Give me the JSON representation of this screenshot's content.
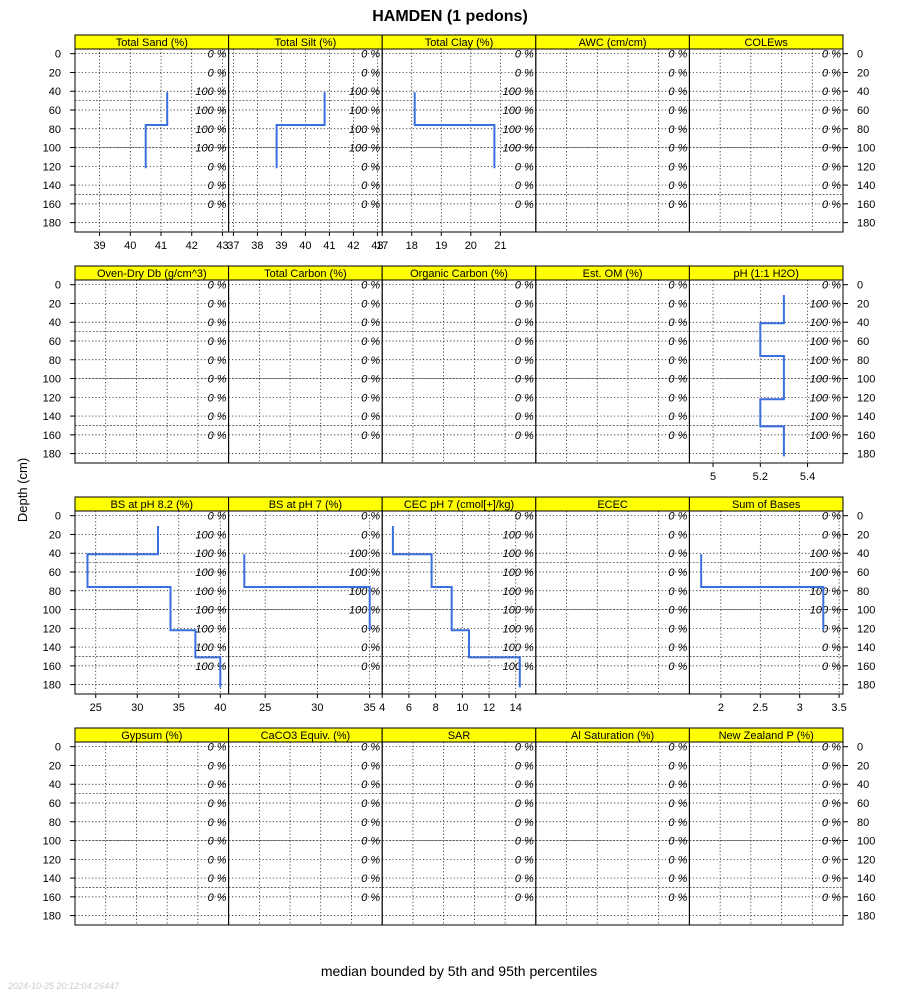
{
  "chart_data": {
    "type": "line",
    "title": "HAMDEN (1 pedons)",
    "ylabel": "Depth (cm)",
    "xlabel": "median bounded by 5th and 95th percentiles",
    "timestamp": "2024-10-25 20:12:04.26447",
    "depth_ticks": [
      0,
      20,
      40,
      60,
      80,
      100,
      120,
      140,
      160,
      180
    ],
    "ylim": [
      190,
      -5
    ],
    "grid": true,
    "line_color": "#3a6fe0",
    "strip_color": "#ffff00",
    "contributing_fraction_depths": [
      0,
      20,
      40,
      60,
      80,
      100,
      120,
      140,
      160
    ],
    "panels": [
      [
        {
          "title": "Total Sand (%)",
          "xlim": [
            38.2,
            43.2
          ],
          "ticks": [
            39,
            40,
            41,
            42,
            43
          ],
          "pct": [
            "0 %",
            "0 %",
            "100 %",
            "100 %",
            "100 %",
            "100 %",
            "0 %",
            "0 %",
            "0 %"
          ],
          "series": [
            {
              "top": 41,
              "bottom": 76,
              "value": 41.2
            },
            {
              "top": 76,
              "bottom": 122,
              "value": 40.5
            }
          ]
        },
        {
          "title": "Total Silt (%)",
          "xlim": [
            36.8,
            43.2
          ],
          "ticks": [
            37,
            38,
            39,
            40,
            41,
            42,
            43
          ],
          "pct": [
            "0 %",
            "0 %",
            "100 %",
            "100 %",
            "100 %",
            "100 %",
            "0 %",
            "0 %",
            "0 %"
          ],
          "series": [
            {
              "top": 41,
              "bottom": 76,
              "value": 40.8
            },
            {
              "top": 76,
              "bottom": 122,
              "value": 38.8
            }
          ]
        },
        {
          "title": "Total Clay (%)",
          "xlim": [
            17,
            22.2
          ],
          "ticks": [
            17,
            18,
            19,
            20,
            21
          ],
          "pct": [
            "0 %",
            "0 %",
            "100 %",
            "100 %",
            "100 %",
            "100 %",
            "0 %",
            "0 %",
            "0 %"
          ],
          "series": [
            {
              "top": 41,
              "bottom": 76,
              "value": 18.1
            },
            {
              "top": 76,
              "bottom": 122,
              "value": 20.8
            }
          ]
        },
        {
          "title": "AWC (cm/cm)",
          "xlim": [
            0,
            1
          ],
          "ticks": [],
          "pct": [
            "0 %",
            "0 %",
            "0 %",
            "0 %",
            "0 %",
            "0 %",
            "0 %",
            "0 %",
            "0 %"
          ],
          "series": []
        },
        {
          "title": "COLEws",
          "xlim": [
            0,
            1
          ],
          "ticks": [],
          "pct": [
            "0 %",
            "0 %",
            "0 %",
            "0 %",
            "0 %",
            "0 %",
            "0 %",
            "0 %",
            "0 %"
          ],
          "series": []
        }
      ],
      [
        {
          "title": "Oven-Dry Db (g/cm^3)",
          "xlim": [
            0,
            1
          ],
          "ticks": [],
          "pct": [
            "0 %",
            "0 %",
            "0 %",
            "0 %",
            "0 %",
            "0 %",
            "0 %",
            "0 %",
            "0 %"
          ],
          "series": []
        },
        {
          "title": "Total Carbon (%)",
          "xlim": [
            0,
            1
          ],
          "ticks": [],
          "pct": [
            "0 %",
            "0 %",
            "0 %",
            "0 %",
            "0 %",
            "0 %",
            "0 %",
            "0 %",
            "0 %"
          ],
          "series": []
        },
        {
          "title": "Organic Carbon (%)",
          "xlim": [
            0,
            1
          ],
          "ticks": [],
          "pct": [
            "0 %",
            "0 %",
            "0 %",
            "0 %",
            "0 %",
            "0 %",
            "0 %",
            "0 %",
            "0 %"
          ],
          "series": []
        },
        {
          "title": "Est. OM (%)",
          "xlim": [
            0,
            1
          ],
          "ticks": [],
          "pct": [
            "0 %",
            "0 %",
            "0 %",
            "0 %",
            "0 %",
            "0 %",
            "0 %",
            "0 %",
            "0 %"
          ],
          "series": []
        },
        {
          "title": "pH (1:1 H2O)",
          "xlim": [
            4.9,
            5.55
          ],
          "ticks": [
            5.0,
            5.2,
            5.4
          ],
          "pct": [
            "0 %",
            "100 %",
            "100 %",
            "100 %",
            "100 %",
            "100 %",
            "100 %",
            "100 %",
            "100 %"
          ],
          "series": [
            {
              "top": 11,
              "bottom": 41,
              "value": 5.3
            },
            {
              "top": 41,
              "bottom": 76,
              "value": 5.2
            },
            {
              "top": 76,
              "bottom": 122,
              "value": 5.3
            },
            {
              "top": 122,
              "bottom": 151,
              "value": 5.2
            },
            {
              "top": 151,
              "bottom": 183,
              "value": 5.3
            }
          ]
        }
      ],
      [
        {
          "title": "BS at pH 8.2 (%)",
          "xlim": [
            22.5,
            41
          ],
          "ticks": [
            25,
            30,
            35,
            40
          ],
          "pct": [
            "0 %",
            "100 %",
            "100 %",
            "100 %",
            "100 %",
            "100 %",
            "100 %",
            "100 %",
            "100 %"
          ],
          "series": [
            {
              "top": 11,
              "bottom": 41,
              "value": 32.5
            },
            {
              "top": 41,
              "bottom": 76,
              "value": 24.0
            },
            {
              "top": 76,
              "bottom": 122,
              "value": 34.0
            },
            {
              "top": 122,
              "bottom": 151,
              "value": 37.0
            },
            {
              "top": 151,
              "bottom": 183,
              "value": 40.0
            }
          ]
        },
        {
          "title": "BS at pH 7 (%)",
          "xlim": [
            21.5,
            36.2
          ],
          "ticks": [
            25,
            30,
            35
          ],
          "pct": [
            "0 %",
            "0 %",
            "100 %",
            "100 %",
            "100 %",
            "100 %",
            "0 %",
            "0 %",
            "0 %"
          ],
          "series": [
            {
              "top": 41,
              "bottom": 76,
              "value": 23.0
            },
            {
              "top": 76,
              "bottom": 122,
              "value": 35.0
            }
          ]
        },
        {
          "title": "CEC pH 7 (cmol[+]/kg)",
          "xlim": [
            4,
            15.5
          ],
          "ticks": [
            4,
            6,
            8,
            10,
            12,
            14
          ],
          "pct": [
            "0 %",
            "100 %",
            "100 %",
            "100 %",
            "100 %",
            "100 %",
            "100 %",
            "100 %",
            "100 %"
          ],
          "series": [
            {
              "top": 11,
              "bottom": 41,
              "value": 4.8
            },
            {
              "top": 41,
              "bottom": 76,
              "value": 7.7
            },
            {
              "top": 76,
              "bottom": 122,
              "value": 9.2
            },
            {
              "top": 122,
              "bottom": 151,
              "value": 10.5
            },
            {
              "top": 151,
              "bottom": 183,
              "value": 14.3
            }
          ]
        },
        {
          "title": "ECEC",
          "xlim": [
            0,
            1
          ],
          "ticks": [],
          "pct": [
            "0 %",
            "0 %",
            "0 %",
            "0 %",
            "0 %",
            "0 %",
            "0 %",
            "0 %",
            "0 %"
          ],
          "series": []
        },
        {
          "title": "Sum of Bases",
          "xlim": [
            1.6,
            3.55
          ],
          "ticks": [
            2.0,
            2.5,
            3.0,
            3.5
          ],
          "pct": [
            "0 %",
            "0 %",
            "100 %",
            "100 %",
            "100 %",
            "100 %",
            "0 %",
            "0 %",
            "0 %"
          ],
          "series": [
            {
              "top": 41,
              "bottom": 76,
              "value": 1.75
            },
            {
              "top": 76,
              "bottom": 122,
              "value": 3.3
            }
          ]
        }
      ],
      [
        {
          "title": "Gypsum (%)",
          "xlim": [
            0,
            1
          ],
          "ticks": [],
          "pct": [
            "0 %",
            "0 %",
            "0 %",
            "0 %",
            "0 %",
            "0 %",
            "0 %",
            "0 %",
            "0 %"
          ],
          "series": []
        },
        {
          "title": "CaCO3 Equiv. (%)",
          "xlim": [
            0,
            1
          ],
          "ticks": [],
          "pct": [
            "0 %",
            "0 %",
            "0 %",
            "0 %",
            "0 %",
            "0 %",
            "0 %",
            "0 %",
            "0 %"
          ],
          "series": []
        },
        {
          "title": "SAR",
          "xlim": [
            0,
            1
          ],
          "ticks": [],
          "pct": [
            "0 %",
            "0 %",
            "0 %",
            "0 %",
            "0 %",
            "0 %",
            "0 %",
            "0 %",
            "0 %"
          ],
          "series": []
        },
        {
          "title": "Al Saturation (%)",
          "xlim": [
            0,
            1
          ],
          "ticks": [],
          "pct": [
            "0 %",
            "0 %",
            "0 %",
            "0 %",
            "0 %",
            "0 %",
            "0 %",
            "0 %",
            "0 %"
          ],
          "series": []
        },
        {
          "title": "New Zealand P (%)",
          "xlim": [
            0,
            1
          ],
          "ticks": [],
          "pct": [
            "0 %",
            "0 %",
            "0 %",
            "0 %",
            "0 %",
            "0 %",
            "0 %",
            "0 %",
            "0 %"
          ],
          "series": []
        }
      ]
    ]
  }
}
